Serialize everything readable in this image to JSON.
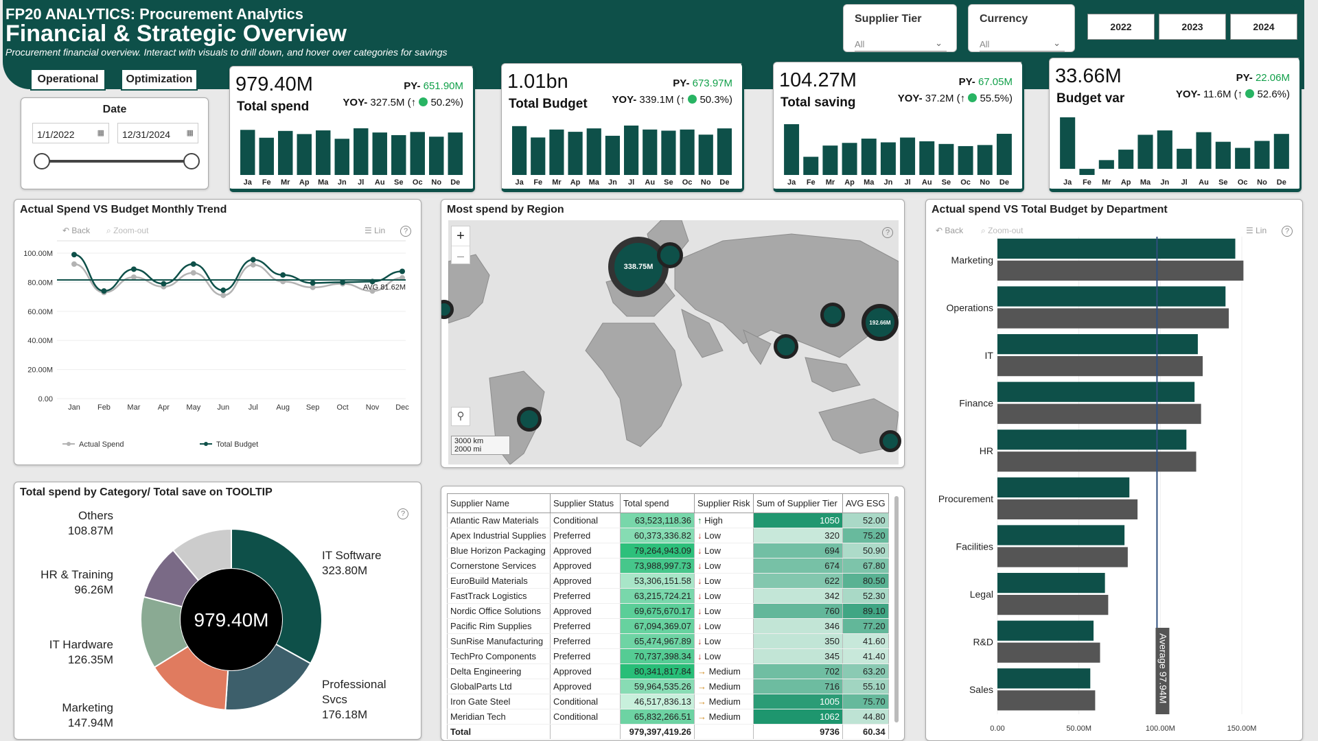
{
  "header": {
    "brand": "FP20 ANALYTICS: Procurement Analytics",
    "title": "Financial & Strategic Overview",
    "subtitle": "Procurement financial overview. Interact with visuals to drill down, and hover over categories for savings"
  },
  "filters": {
    "supplier_tier": {
      "label": "Supplier Tier",
      "value": "All"
    },
    "currency": {
      "label": "Currency",
      "value": "All"
    },
    "years": [
      "2022",
      "2023",
      "2024"
    ]
  },
  "nav": {
    "operational": "Operational",
    "optimization": "Optimization"
  },
  "date_slicer": {
    "label": "Date",
    "start": "1/1/2022",
    "end": "12/31/2024"
  },
  "months_short": [
    "Ja",
    "Fe",
    "Mr",
    "Ap",
    "Ma",
    "Jn",
    "Jl",
    "Au",
    "Se",
    "Oc",
    "No",
    "De"
  ],
  "kpis": [
    {
      "value": "979.40M",
      "name": "Total spend",
      "py_label": "PY-",
      "py": "651.90M",
      "yoy_label": "YOY-",
      "yoy": "327.5M (↑",
      "pct": "50.2%)",
      "bars": [
        8.6,
        7.1,
        8.4,
        7.8,
        8.5,
        6.9,
        8.9,
        8.1,
        7.6,
        8.2,
        7.3,
        8.1
      ]
    },
    {
      "value": "1.01bn",
      "name": "Total Budget",
      "py_label": "PY-",
      "py": "673.97M",
      "yoy_label": "YOY-",
      "yoy": "339.1M (↑",
      "pct": "50.3%)",
      "bars": [
        8.6,
        6.6,
        8.0,
        7.6,
        8.2,
        6.9,
        8.7,
        8.0,
        7.8,
        8.0,
        7.1,
        8.2
      ]
    },
    {
      "value": "104.27M",
      "name": "Total saving",
      "py_label": "PY-",
      "py": "67.05M",
      "yoy_label": "YOY-",
      "yoy": "37.2M (↑",
      "pct": "55.5%)",
      "bars": [
        9.5,
        3.4,
        5.5,
        6.0,
        6.8,
        6.1,
        7.0,
        6.3,
        5.8,
        5.4,
        5.6,
        7.7
      ]
    },
    {
      "value": "33.66M",
      "name": "Budget var",
      "py_label": "PY-",
      "py": "22.06M",
      "yoy_label": "YOY-",
      "yoy": "11.6M (↑",
      "pct": "52.6%)",
      "bars": [
        5.9,
        -0.7,
        1.0,
        2.2,
        3.9,
        4.4,
        2.3,
        4.2,
        3.1,
        2.4,
        3.2,
        4.0
      ]
    }
  ],
  "panels": {
    "trend": "Actual Spend VS Budget Monthly Trend",
    "region": "Most spend by Region",
    "dept": "Actual spend VS Total Budget by Department",
    "category": "Total spend by Category/ Total save on TOOLTIP"
  },
  "toolbar": {
    "back": "Back",
    "zoom": "Zoom-out",
    "lin": "Lin"
  },
  "trend_chart": {
    "type": "line",
    "categories": [
      "Jan",
      "Feb",
      "Mar",
      "Apr",
      "May",
      "Jun",
      "Jul",
      "Aug",
      "Sep",
      "Oct",
      "Nov",
      "Dec"
    ],
    "series": [
      {
        "name": "Actual Spend",
        "values": [
          92.5,
          73.0,
          83.5,
          77.0,
          86.5,
          71.0,
          92.0,
          80.5,
          76.5,
          79.0,
          74.0,
          83.0
        ]
      },
      {
        "name": "Total Budget",
        "values": [
          99.0,
          74.0,
          89.0,
          79.0,
          92.5,
          74.5,
          95.5,
          85.0,
          79.5,
          80.0,
          80.5,
          87.5
        ]
      }
    ],
    "avg_label": "AVG 81.62M",
    "avg": 81.62,
    "yticks": [
      "0.00",
      "20.00M",
      "40.00M",
      "60.00M",
      "80.00M",
      "100.00M"
    ],
    "ylim": [
      0,
      100
    ]
  },
  "map": {
    "bubbles": [
      {
        "label": "338.75M",
        "region": "Europe"
      },
      {
        "label": "192.66M",
        "region": "East Asia"
      },
      {
        "label": "",
        "region": "Scandinavia"
      },
      {
        "label": "",
        "region": "Central Asia"
      },
      {
        "label": "",
        "region": "South Asia"
      },
      {
        "label": "",
        "region": "South America"
      },
      {
        "label": "",
        "region": "Oceania"
      },
      {
        "label": "",
        "region": "North America"
      }
    ],
    "scale_km": "3000 km",
    "scale_mi": "2000 mi",
    "zoom_in": "+",
    "zoom_out": "–"
  },
  "dept_chart": {
    "type": "bar",
    "categories": [
      "Marketing",
      "Operations",
      "IT",
      "Finance",
      "HR",
      "Procurement",
      "Facilities",
      "Legal",
      "R&D",
      "Sales"
    ],
    "series": [
      {
        "name": "Actual spend",
        "values": [
          146,
          140,
          123,
          121,
          116,
          81,
          78,
          66,
          59,
          57
        ]
      },
      {
        "name": "Total Budget",
        "values": [
          151,
          142,
          126,
          125,
          122,
          86,
          80,
          68,
          63,
          60
        ]
      }
    ],
    "avg_label": "Average 97.94M",
    "avg": 97.94,
    "xticks": [
      "0.00",
      "50.00M",
      "100.00M",
      "150.00M"
    ],
    "xlim": [
      0,
      150
    ]
  },
  "donut": {
    "center": "979.40M",
    "slices": [
      {
        "name": "IT Software",
        "value": "323.80M",
        "v": 323.8,
        "color": "#0e5049"
      },
      {
        "name": "Professional Svcs",
        "value": "176.18M",
        "v": 176.18,
        "color": "#3d5f6b"
      },
      {
        "name": "Marketing",
        "value": "147.94M",
        "v": 147.94,
        "color": "#e07b5f"
      },
      {
        "name": "IT Hardware",
        "value": "126.35M",
        "v": 126.35,
        "color": "#8aaa93"
      },
      {
        "name": "HR & Training",
        "value": "96.26M",
        "v": 96.26,
        "color": "#7a6a86"
      },
      {
        "name": "Others",
        "value": "108.87M",
        "v": 108.87,
        "color": "#cccccc"
      }
    ]
  },
  "table": {
    "headers": [
      "Supplier Name",
      "Supplier Status",
      "Total spend",
      "Supplier Risk",
      "Sum of Supplier Tier",
      "AVG ESG"
    ],
    "rows": [
      [
        "Atlantic Raw Materials",
        "Conditional",
        "63,523,118.36",
        "High",
        "1050",
        "52.00"
      ],
      [
        "Apex Industrial Supplies",
        "Preferred",
        "60,373,336.82",
        "Low",
        "320",
        "75.20"
      ],
      [
        "Blue Horizon Packaging",
        "Approved",
        "79,264,943.09",
        "Low",
        "694",
        "50.90"
      ],
      [
        "Cornerstone Services",
        "Approved",
        "73,988,997.73",
        "Low",
        "674",
        "67.80"
      ],
      [
        "EuroBuild Materials",
        "Approved",
        "53,306,151.58",
        "Low",
        "622",
        "80.50"
      ],
      [
        "FastTrack Logistics",
        "Preferred",
        "63,215,724.21",
        "Low",
        "342",
        "52.30"
      ],
      [
        "Nordic Office Solutions",
        "Approved",
        "69,675,670.17",
        "Low",
        "760",
        "89.10"
      ],
      [
        "Pacific Rim Supplies",
        "Preferred",
        "67,094,369.07",
        "Low",
        "346",
        "77.20"
      ],
      [
        "SunRise Manufacturing",
        "Preferred",
        "65,474,967.89",
        "Low",
        "350",
        "41.60"
      ],
      [
        "TechPro Components",
        "Preferred",
        "70,737,398.34",
        "Low",
        "345",
        "41.40"
      ],
      [
        "Delta Engineering",
        "Approved",
        "80,341,817.84",
        "Medium",
        "702",
        "63.20"
      ],
      [
        "GlobalParts Ltd",
        "Approved",
        "59,964,535.26",
        "Medium",
        "716",
        "55.10"
      ],
      [
        "Iron Gate Steel",
        "Conditional",
        "46,517,836.13",
        "Medium",
        "1005",
        "75.70"
      ],
      [
        "Meridian Tech",
        "Conditional",
        "65,832,266.51",
        "Medium",
        "1062",
        "44.80"
      ]
    ],
    "total": [
      "Total",
      "",
      "979,397,419.26",
      "",
      "9736",
      "60.34"
    ]
  },
  "colors": {
    "brand": "#0e5049",
    "bar_dark": "#0e5049",
    "bar_gray": "#555555",
    "positive": "#12a04a"
  }
}
